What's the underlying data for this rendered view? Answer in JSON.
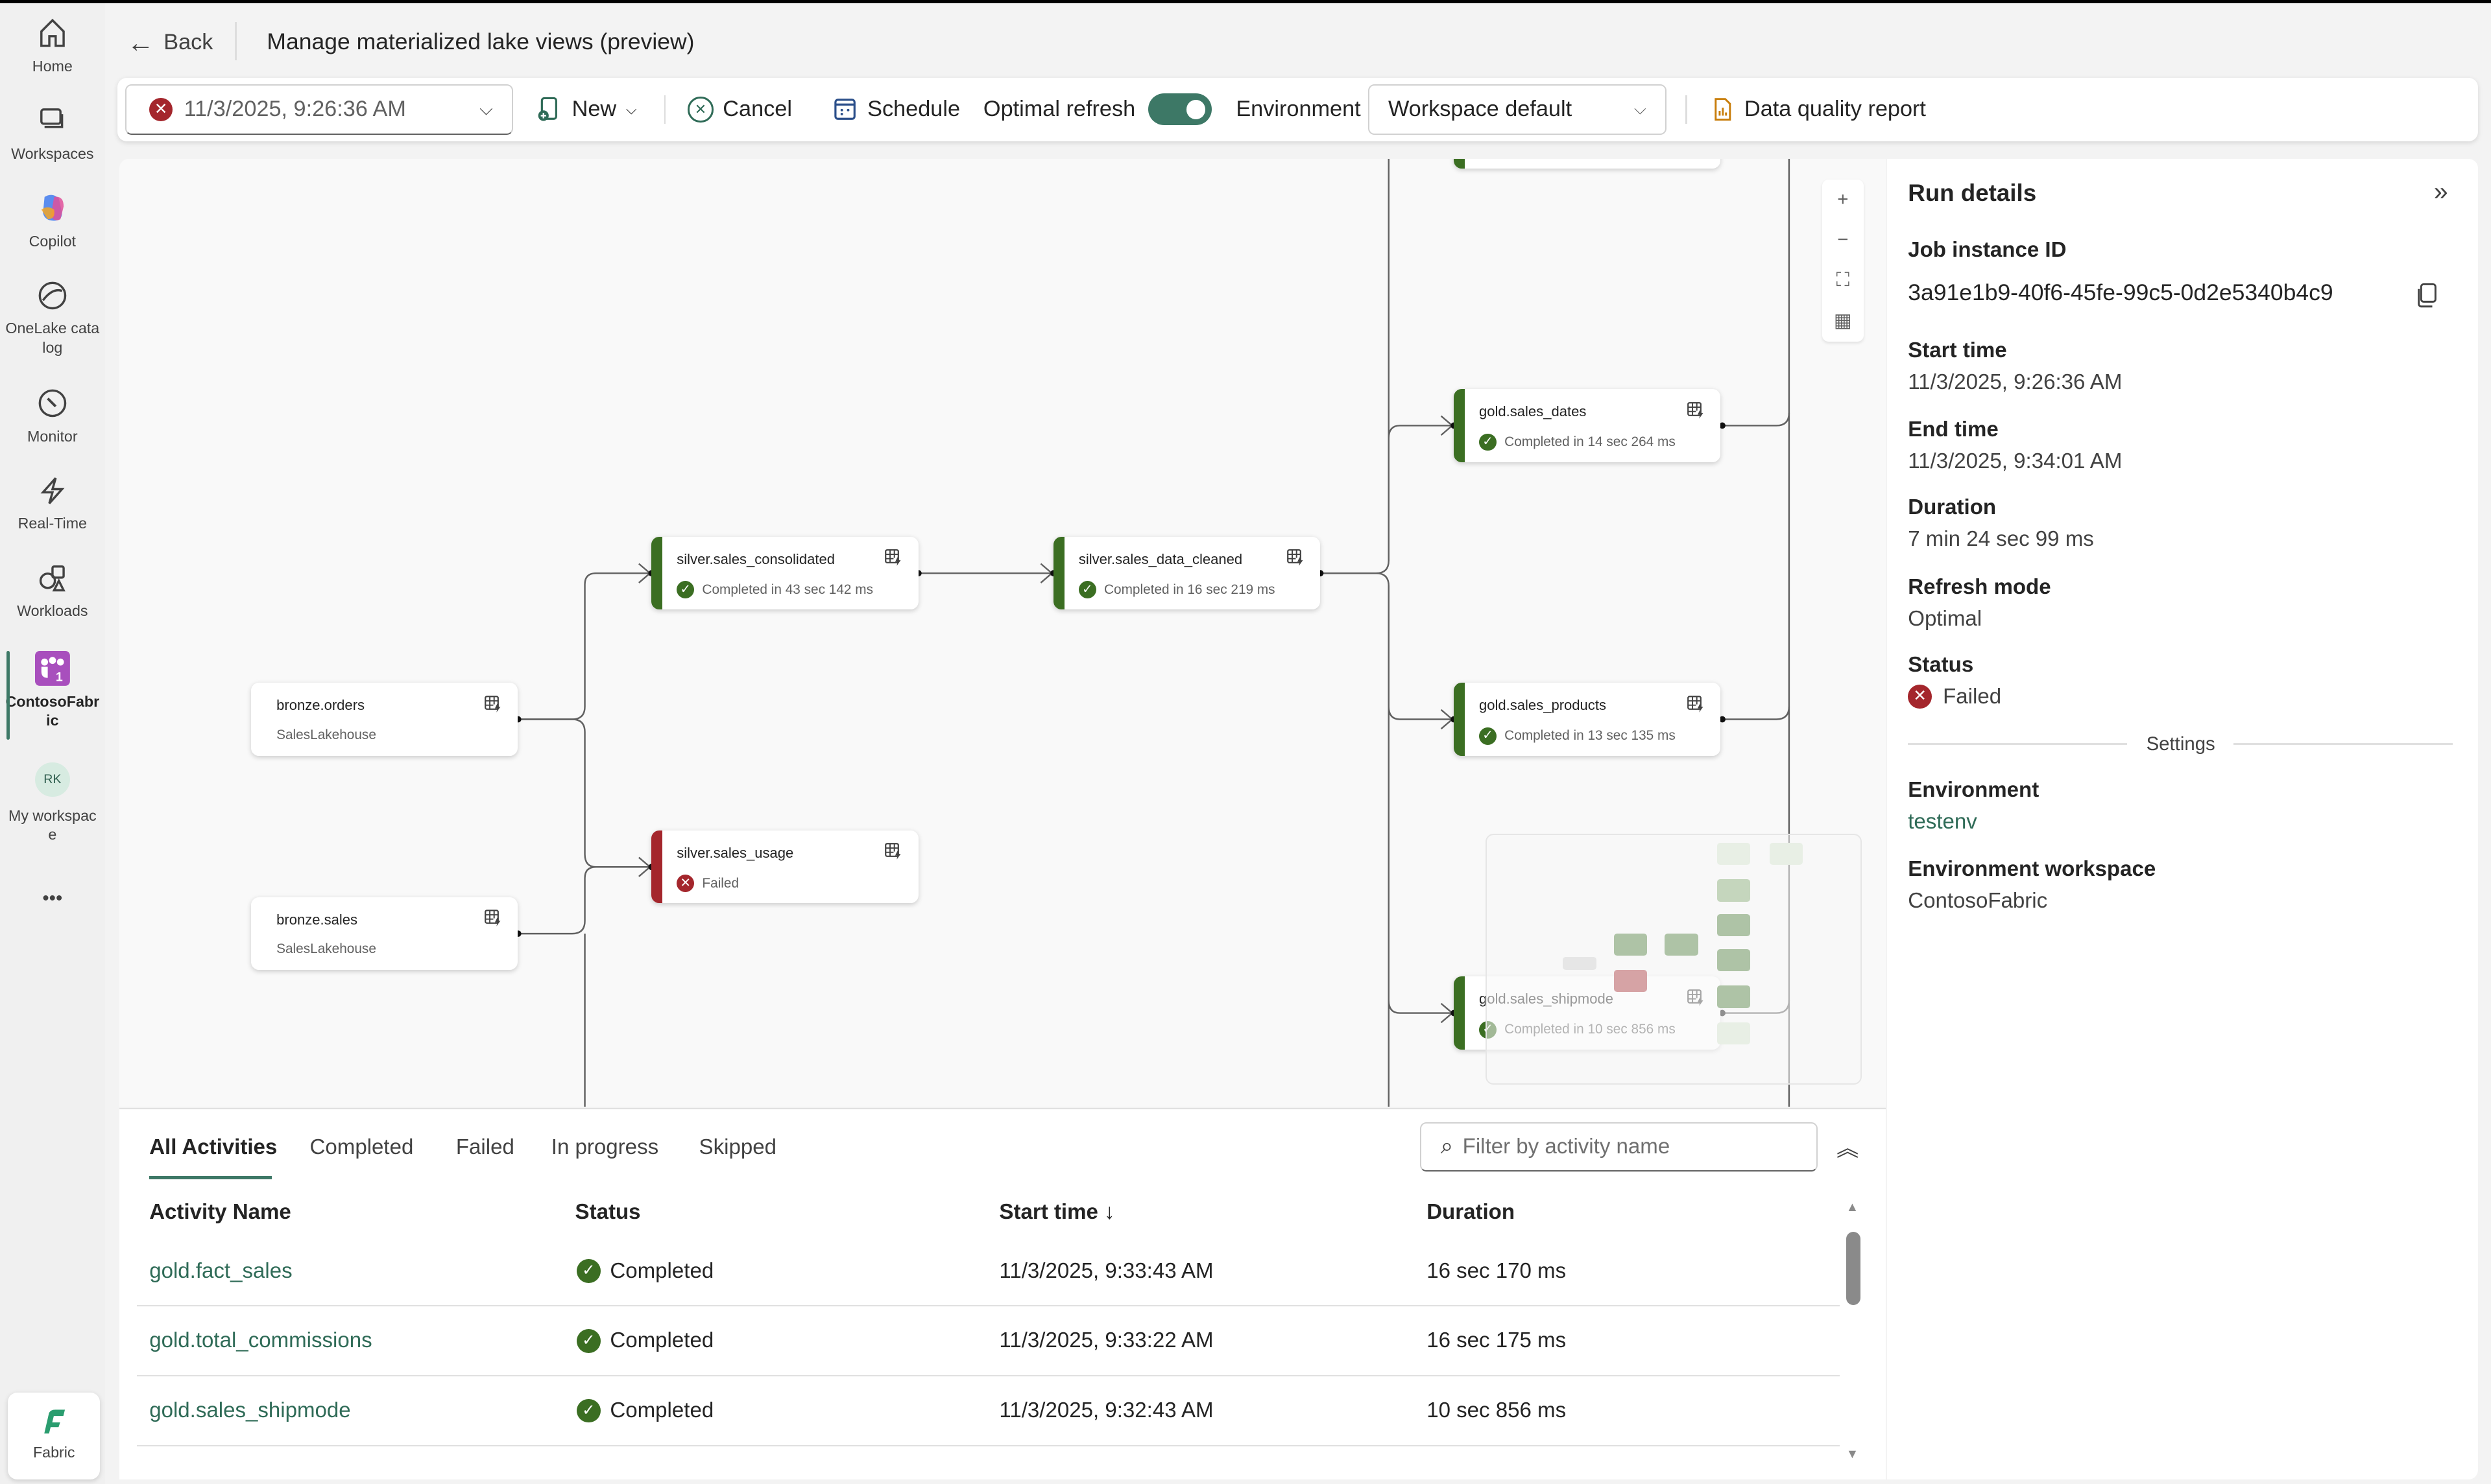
{
  "sidebar": {
    "items": [
      {
        "label": "Home",
        "icon": "home-icon"
      },
      {
        "label": "Workspaces",
        "icon": "workspaces-icon"
      },
      {
        "label": "Copilot",
        "icon": "copilot-icon"
      },
      {
        "label": "OneLake catalog",
        "icon": "onelake-icon"
      },
      {
        "label": "Monitor",
        "icon": "monitor-icon"
      },
      {
        "label": "Real-Time",
        "icon": "lightning-icon"
      },
      {
        "label": "Workloads",
        "icon": "workloads-icon"
      },
      {
        "label": "ContosoFabric",
        "icon": "workspace-icon",
        "badge": "1",
        "active": true
      },
      {
        "label": "My workspace",
        "avatar": "RK"
      }
    ],
    "more": "•••",
    "fabric_label": "Fabric"
  },
  "header": {
    "back_label": "Back",
    "title": "Manage materialized lake views (preview)"
  },
  "toolbar": {
    "run_selected": "11/3/2025, 9:26:36 AM",
    "new_label": "New",
    "cancel_label": "Cancel",
    "schedule_label": "Schedule",
    "optimal_refresh_label": "Optimal refresh",
    "optimal_refresh_on": true,
    "environment_label": "Environment",
    "environment_value": "Workspace default",
    "data_quality_label": "Data quality report"
  },
  "graph": {
    "nodes": [
      {
        "name": "bronze.orders",
        "sub": "SalesLakehouse",
        "status": "source"
      },
      {
        "name": "bronze.sales",
        "sub": "SalesLakehouse",
        "status": "source"
      },
      {
        "name": "silver.sales_consolidated",
        "sub": "Completed in 43 sec 142 ms",
        "status": "completed"
      },
      {
        "name": "silver.sales_usage",
        "sub": "Failed",
        "status": "failed"
      },
      {
        "name": "silver.sales_data_cleaned",
        "sub": "Completed in 16 sec 219 ms",
        "status": "completed"
      },
      {
        "name": "gold.sales_dates",
        "sub": "Completed in 14 sec 264 ms",
        "status": "completed"
      },
      {
        "name": "gold.sales_products",
        "sub": "Completed in 13 sec 135 ms",
        "status": "completed"
      },
      {
        "name": "gold.sales_shipmode",
        "sub": "Completed in 10 sec 856 ms",
        "status": "completed"
      }
    ],
    "zoom_controls": [
      "+",
      "−",
      "⛶",
      "▦"
    ]
  },
  "colors": {
    "completed": "#3b6e22",
    "failed": "#a4262c",
    "accent": "#3d7866"
  },
  "run_details": {
    "title": "Run details",
    "job_id_label": "Job instance ID",
    "job_id": "3a91e1b9-40f6-45fe-99c5-0d2e5340b4c9",
    "start_label": "Start time",
    "start": "11/3/2025, 9:26:36 AM",
    "end_label": "End time",
    "end": "11/3/2025, 9:34:01 AM",
    "duration_label": "Duration",
    "duration": "7 min 24 sec 99 ms",
    "mode_label": "Refresh mode",
    "mode": "Optimal",
    "status_label": "Status",
    "status": "Failed",
    "settings_label": "Settings",
    "env_label": "Environment",
    "env": "testenv",
    "env_ws_label": "Environment workspace",
    "env_ws": "ContosoFabric"
  },
  "activities": {
    "tabs": [
      "All Activities",
      "Completed",
      "Failed",
      "In progress",
      "Skipped"
    ],
    "filter_placeholder": "Filter by activity name",
    "columns": [
      "Activity Name",
      "Status",
      "Start time ↓",
      "Duration"
    ],
    "rows": [
      {
        "name": "gold.fact_sales",
        "status": "Completed",
        "start": "11/3/2025, 9:33:43 AM",
        "duration": "16 sec 170 ms"
      },
      {
        "name": "gold.total_commissions",
        "status": "Completed",
        "start": "11/3/2025, 9:33:22 AM",
        "duration": "16 sec 175 ms"
      },
      {
        "name": "gold.sales_shipmode",
        "status": "Completed",
        "start": "11/3/2025, 9:32:43 AM",
        "duration": "10 sec 856 ms"
      }
    ]
  }
}
